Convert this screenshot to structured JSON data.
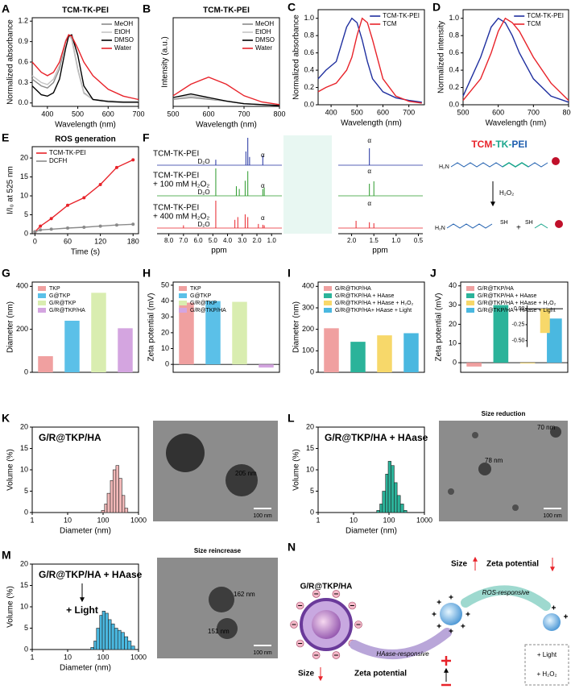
{
  "chart_data": [
    {
      "label": "A",
      "type": "line",
      "title": "TCM-TK-PEI",
      "x_label": "Wavelength (nm)",
      "y_label": "Normalized absorbance",
      "xlim": [
        350,
        700
      ],
      "xticks": [
        400,
        500,
        600,
        700
      ],
      "ylim": [
        -0.05,
        1.25
      ],
      "yticks": [
        {
          "value": 0,
          "label": "0.0"
        },
        0.3,
        0.6,
        0.9,
        1.2
      ],
      "legend": "upper right",
      "x": [
        350,
        380,
        400,
        420,
        440,
        460,
        470,
        480,
        500,
        520,
        550,
        600,
        650,
        700
      ],
      "series": [
        {
          "name": "MeOH",
          "color": "#8a8a8a",
          "values": [
            0.35,
            0.25,
            0.22,
            0.3,
            0.5,
            0.9,
            1.0,
            0.95,
            0.5,
            0.15,
            0.05,
            0.03,
            0.02,
            0.02
          ]
        },
        {
          "name": "EtOH",
          "color": "#c4c4c4",
          "values": [
            0.4,
            0.3,
            0.27,
            0.35,
            0.55,
            0.92,
            1.0,
            0.93,
            0.48,
            0.14,
            0.05,
            0.03,
            0.02,
            0.02
          ]
        },
        {
          "name": "DMSO",
          "color": "#000000",
          "values": [
            0.25,
            0.12,
            0.1,
            0.15,
            0.35,
            0.8,
            0.98,
            1.0,
            0.7,
            0.25,
            0.05,
            0.02,
            0.01,
            0.01
          ]
        },
        {
          "name": "Water",
          "color": "#e8232a",
          "values": [
            0.6,
            0.45,
            0.4,
            0.45,
            0.6,
            0.9,
            1.0,
            0.98,
            0.8,
            0.6,
            0.4,
            0.2,
            0.1,
            0.05
          ]
        }
      ]
    },
    {
      "label": "B",
      "type": "line",
      "title": "TCM-TK-PEI",
      "x_label": "Wavelength (nm)",
      "y_label": "Intensity (a.u.)",
      "xlim": [
        500,
        800
      ],
      "xticks": [
        500,
        600,
        700,
        800
      ],
      "ylim": [
        0,
        1
      ],
      "legend": "upper right",
      "x": [
        500,
        550,
        600,
        650,
        700,
        750,
        800
      ],
      "series": [
        {
          "name": "MeOH",
          "color": "#8a8a8a",
          "values": [
            0.08,
            0.1,
            0.08,
            0.06,
            0.03,
            0.02,
            0.01
          ]
        },
        {
          "name": "EtOH",
          "color": "#c4c4c4",
          "values": [
            0.1,
            0.12,
            0.09,
            0.06,
            0.03,
            0.02,
            0.01
          ]
        },
        {
          "name": "DMSO",
          "color": "#000000",
          "values": [
            0.1,
            0.14,
            0.1,
            0.06,
            0.03,
            0.02,
            0.01
          ]
        },
        {
          "name": "Water",
          "color": "#e8232a",
          "values": [
            0.12,
            0.25,
            0.33,
            0.25,
            0.12,
            0.05,
            0.02
          ]
        }
      ]
    },
    {
      "label": "C",
      "type": "line",
      "x_label": "Wavelength (nm)",
      "y_label": "Normalized absorbance",
      "xlim": [
        350,
        760
      ],
      "xticks": [
        400,
        500,
        600,
        700
      ],
      "ylim": [
        0,
        1.1
      ],
      "yticks": [
        {
          "value": 0,
          "label": "0.0"
        },
        0.2,
        0.4,
        0.6,
        0.8,
        {
          "value": 1,
          "label": "1.0"
        }
      ],
      "legend": "upper right",
      "x": [
        350,
        380,
        420,
        460,
        480,
        500,
        520,
        540,
        560,
        600,
        650,
        700,
        750
      ],
      "series": [
        {
          "name": "TCM-TK-PEI",
          "color": "#1f2f9f",
          "values": [
            0.3,
            0.4,
            0.5,
            0.9,
            1.0,
            0.95,
            0.75,
            0.5,
            0.3,
            0.15,
            0.08,
            0.05,
            0.03
          ]
        },
        {
          "name": "TCM",
          "color": "#e8232a",
          "values": [
            0.15,
            0.2,
            0.25,
            0.4,
            0.55,
            0.8,
            1.0,
            0.95,
            0.75,
            0.3,
            0.1,
            0.04,
            0.02
          ]
        }
      ]
    },
    {
      "label": "D",
      "type": "line",
      "x_label": "Wavelength (nm)",
      "y_label": "Normalized intensity",
      "xlim": [
        500,
        800
      ],
      "xticks": [
        500,
        600,
        700,
        800
      ],
      "ylim": [
        0,
        1.1
      ],
      "yticks": [
        {
          "value": 0,
          "label": "0.0"
        },
        0.2,
        0.4,
        0.6,
        0.8,
        {
          "value": 1,
          "label": "1.0"
        }
      ],
      "legend": "upper right",
      "x": [
        500,
        550,
        580,
        600,
        620,
        640,
        660,
        700,
        750,
        800
      ],
      "series": [
        {
          "name": "TCM-TK-PEI",
          "color": "#1f2f9f",
          "values": [
            0.1,
            0.55,
            0.9,
            1.0,
            0.95,
            0.8,
            0.6,
            0.3,
            0.1,
            0.03
          ]
        },
        {
          "name": "TCM",
          "color": "#e8232a",
          "values": [
            0.05,
            0.3,
            0.6,
            0.85,
            1.0,
            0.95,
            0.85,
            0.55,
            0.25,
            0.05
          ]
        }
      ]
    },
    {
      "label": "E",
      "type": "line",
      "title": "ROS generation",
      "x_label": "Time (s)",
      "y_label": "I/I₀ at 525 nm",
      "markers": true,
      "xlim": [
        -5,
        190
      ],
      "xticks": [
        0,
        60,
        120,
        180
      ],
      "ylim": [
        0,
        23
      ],
      "yticks": [
        0,
        5,
        10,
        15,
        20
      ],
      "legend": "upper left",
      "x": [
        0,
        10,
        30,
        60,
        90,
        120,
        150,
        180
      ],
      "series": [
        {
          "name": "TCM-TK-PEI",
          "color": "#e8232a",
          "values": [
            0.5,
            2,
            4,
            7.5,
            9.5,
            13,
            17.5,
            19.5
          ]
        },
        {
          "name": "DCFH",
          "color": "#8a8a8a",
          "values": [
            0.5,
            1,
            1.2,
            1.5,
            1.7,
            2,
            2.3,
            2.5
          ]
        }
      ]
    },
    {
      "label": "G",
      "type": "bar",
      "y_label": "Diameter (nm)",
      "ylim": [
        0,
        420
      ],
      "yticks": [
        0,
        200,
        400
      ],
      "legend": "upper left",
      "categories": [
        "TKP",
        "G@TKP",
        "G/R@TKP",
        "G/R@TKP/HA"
      ],
      "values": [
        75,
        240,
        370,
        205
      ],
      "colors": [
        "#f0a0a0",
        "#5bc0e8",
        "#d9edb0",
        "#d4a5e0"
      ]
    },
    {
      "label": "H",
      "type": "bar",
      "y_label": "Zeta potential (mV)",
      "ylim": [
        -5,
        52
      ],
      "yticks": [
        0,
        10,
        20,
        30,
        40,
        50
      ],
      "legend": "upper left",
      "categories": [
        "TKP",
        "G@TKP",
        "G/R@TKP",
        "G/R@TKP/HA"
      ],
      "values": [
        39,
        40,
        39.5,
        -2
      ],
      "colors": [
        "#f0a0a0",
        "#5bc0e8",
        "#d9edb0",
        "#d4a5e0"
      ]
    },
    {
      "label": "I",
      "type": "bar",
      "y_label": "Diameter (nm)",
      "ylim": [
        0,
        420
      ],
      "yticks": [
        0,
        100,
        200,
        300,
        400
      ],
      "legend": "upper left",
      "categories": [
        "G/R@TKP/HA",
        "G/R@TKP/HA + HAase",
        "G/R@TKP/HA + HAase + H₂O₂",
        "G/R@TKP/HA+ HAase + Light"
      ],
      "values": [
        205,
        142,
        172,
        182
      ],
      "colors": [
        "#f0a0a0",
        "#2bb39a",
        "#f7d86a",
        "#4ab8e0"
      ]
    },
    {
      "label": "J",
      "type": "bar",
      "y_label": "Zeta potential (mV)",
      "ylim": [
        -5,
        42
      ],
      "yticks": [
        0,
        10,
        20,
        30,
        40
      ],
      "legend": "upper left",
      "categories": [
        "G/R@TKP/HA",
        "G/R@TKP/HA + HAase",
        "G/R@TKP/HA + HAase + H₂O₂",
        "G/R@TKP/HA + HAase + Light"
      ],
      "values": [
        -2,
        30,
        -0.38,
        23
      ],
      "colors": [
        "#f0a0a0",
        "#2bb39a",
        "#f7d86a",
        "#4ab8e0"
      ],
      "inset": {
        "ylim": [
          -0.6,
          0.05
        ],
        "yticks": [
          {
            "value": 0,
            "label": "0.00"
          },
          {
            "value": -0.25,
            "label": "-0.25"
          },
          {
            "value": -0.5,
            "label": "-0.50"
          }
        ]
      }
    },
    {
      "label": "K",
      "type": "histogram",
      "title": "G/R@TKP/HA",
      "x_label": "Diameter (nm)",
      "y_label": "Volume (%)",
      "xlog": true,
      "xlim": [
        1,
        1000
      ],
      "xticks": [
        1,
        10,
        100,
        1000
      ],
      "ylim": [
        0,
        20
      ],
      "yticks": [
        0,
        5,
        10,
        15,
        20
      ],
      "color": "#f2b8b8",
      "bins": [
        90,
        110,
        130,
        160,
        190,
        230,
        280,
        340,
        410,
        500
      ],
      "counts": [
        0.5,
        2,
        4.5,
        7.5,
        10,
        11,
        8,
        4,
        1
      ]
    },
    {
      "label": "L",
      "type": "histogram",
      "title": "G/R@TKP/HA + HAase",
      "x_label": "Diameter (nm)",
      "y_label": "Volume (%)",
      "xlog": true,
      "xlim": [
        1,
        1000
      ],
      "xticks": [
        1,
        10,
        100,
        1000
      ],
      "ylim": [
        0,
        20
      ],
      "yticks": [
        0,
        5,
        10,
        15,
        20
      ],
      "color": "#2bb39a",
      "bins": [
        45,
        55,
        65,
        80,
        95,
        115,
        140,
        170,
        210,
        260,
        320
      ],
      "counts": [
        0.5,
        2,
        5,
        9,
        12,
        11,
        7,
        4,
        2,
        0.5
      ]
    },
    {
      "label": "M",
      "type": "histogram",
      "title": "G/R@TKP/HA + HAase",
      "annotation": "+ Light",
      "x_label": "Diameter (nm)",
      "y_label": "Volume (%)",
      "xlog": true,
      "xlim": [
        1,
        1000
      ],
      "xticks": [
        1,
        10,
        100,
        1000
      ],
      "ylim": [
        0,
        20
      ],
      "yticks": [
        0,
        5,
        10,
        15,
        20
      ],
      "color": "#4ab8e0",
      "bins": [
        45,
        55,
        65,
        80,
        95,
        115,
        140,
        170,
        210,
        260,
        320,
        400,
        500,
        620,
        780
      ],
      "counts": [
        0.5,
        2,
        5,
        8,
        9,
        8.5,
        7,
        6,
        5,
        4.5,
        4,
        3,
        2,
        0.8
      ]
    }
  ],
  "nmr": {
    "label": "F",
    "x_label": "ppm",
    "xlim": [
      8.8,
      0.3
    ],
    "xticks": [
      {
        "value": 8,
        "label": "8.0"
      },
      {
        "value": 7,
        "label": "7.0"
      },
      {
        "value": 6,
        "label": "6.0"
      },
      {
        "value": 5,
        "label": "5.0"
      },
      {
        "value": 4,
        "label": "4.0"
      },
      {
        "value": 3,
        "label": "3.0"
      },
      {
        "value": 2,
        "label": "2.0"
      },
      {
        "value": 1,
        "label": "1.0"
      }
    ],
    "zoom_xlim": [
      2.3,
      0.4
    ],
    "zoom_xticks": [
      {
        "value": 2,
        "label": "2.0"
      },
      1.5,
      {
        "value": 1,
        "label": "1.0"
      },
      0.5
    ],
    "solvent": "D₂O",
    "alpha": "α",
    "spectra": [
      {
        "name": [
          "TCM-TK-PEI"
        ],
        "color": "#1f2f9f",
        "peaks": [
          [
            4.8,
            0.2
          ],
          [
            2.75,
            0.5
          ],
          [
            2.62,
            1.0
          ],
          [
            2.5,
            0.3
          ],
          [
            1.6,
            0.35
          ]
        ]
      },
      {
        "name": [
          "TCM-TK-PEI",
          "+ 100 mM H₂O₂"
        ],
        "color": "#2a9a2a",
        "peaks": [
          [
            4.8,
            1.0
          ],
          [
            3.4,
            0.35
          ],
          [
            3.2,
            0.25
          ],
          [
            2.8,
            0.55
          ],
          [
            2.62,
            0.9
          ],
          [
            1.6,
            0.25
          ],
          [
            1.5,
            0.3
          ]
        ]
      },
      {
        "name": [
          "TCM-TK-PEI",
          "+ 400 mM H₂O₂"
        ],
        "color": "#e8232a",
        "peaks": [
          [
            7.0,
            0.1
          ],
          [
            4.8,
            1.0
          ],
          [
            3.5,
            0.3
          ],
          [
            3.3,
            0.4
          ],
          [
            2.8,
            0.5
          ],
          [
            2.62,
            0.4
          ],
          [
            1.9,
            0.15
          ],
          [
            1.6,
            0.12
          ],
          [
            1.5,
            0.1
          ]
        ]
      }
    ],
    "structure": {
      "title": [
        "TCM",
        "-TK-",
        "PEI"
      ],
      "colors": [
        "#e8232a",
        "#1aa68c",
        "#1f5faf"
      ],
      "reagent": "H₂O₂",
      "amine": "H₂N",
      "thiol": "SH",
      "plus": "+"
    }
  },
  "tem_images": [
    {
      "sizes": [
        "205 nm"
      ],
      "scale_bar": "100 nm"
    },
    {
      "title": "Size reduction",
      "sizes": [
        "70 nm",
        "78 nm"
      ],
      "scale_bar": "100 nm"
    },
    {
      "title": "Size reincrease",
      "sizes": [
        "162 nm",
        "151 nm"
      ],
      "scale_bar": "100 nm"
    }
  ],
  "schematic": {
    "label": "N",
    "particle": "G/R@TKP/HA",
    "top_size": "Size",
    "top_zeta": "Zeta potential",
    "ros": "ROS-responsive",
    "haase": "HAase-responsive",
    "bottom_size": "Size",
    "bottom_zeta": "Zeta potential",
    "stimuli": [
      "+ Light",
      "+ H₂O₂"
    ]
  }
}
